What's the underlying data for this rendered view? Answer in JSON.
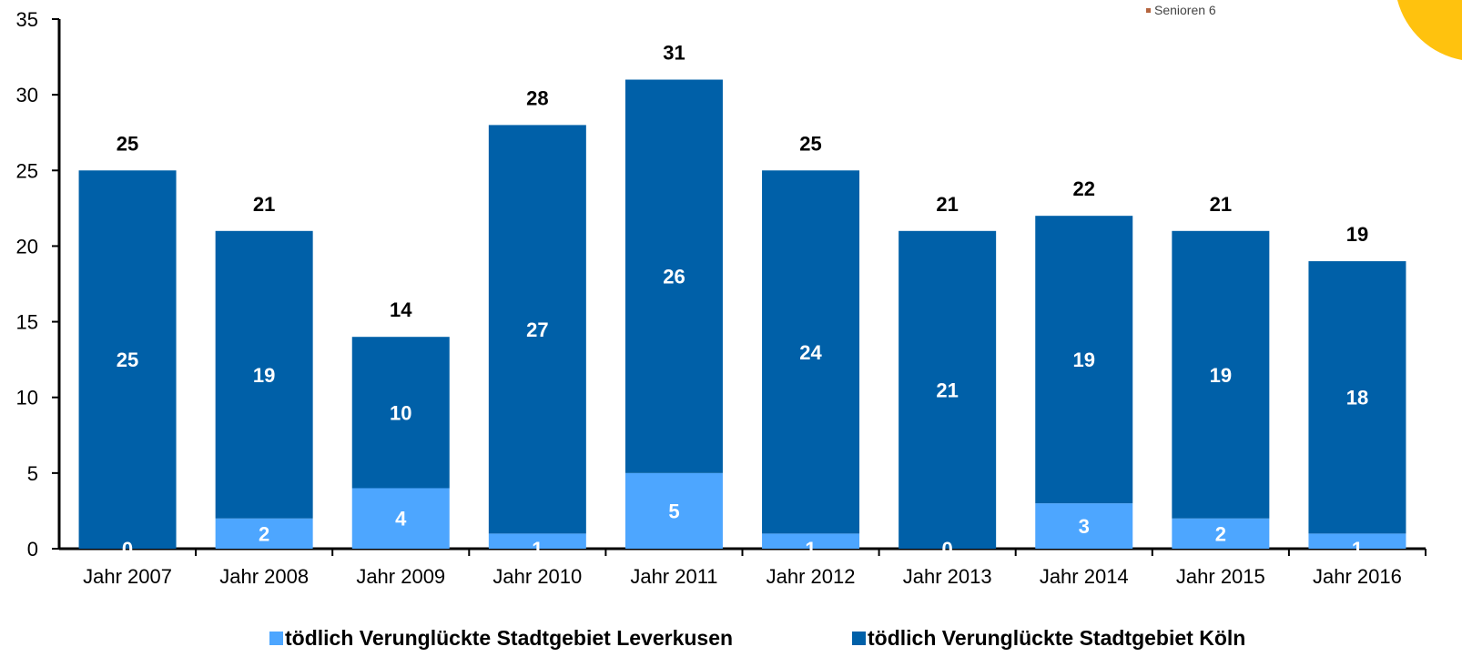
{
  "corner_note": "Senioren 6",
  "colors": {
    "leverkusen": "#4da6ff",
    "koeln": "#0060a8",
    "corner_accent": "#ffc20e",
    "note_bullet": "#b5653f"
  },
  "chart_data": {
    "type": "bar",
    "stacked": true,
    "categories": [
      "Jahr 2007",
      "Jahr 2008",
      "Jahr 2009",
      "Jahr 2010",
      "Jahr 2011",
      "Jahr 2012",
      "Jahr 2013",
      "Jahr 2014",
      "Jahr 2015",
      "Jahr 2016"
    ],
    "series": [
      {
        "name": "tödlich Verunglückte Stadtgebiet Leverkusen",
        "values": [
          0,
          2,
          4,
          1,
          5,
          1,
          0,
          3,
          2,
          1
        ]
      },
      {
        "name": "tödlich Verunglückte Stadtgebiet Köln",
        "values": [
          25,
          19,
          10,
          27,
          26,
          24,
          21,
          19,
          19,
          18
        ]
      }
    ],
    "totals": [
      25,
      21,
      14,
      28,
      31,
      25,
      21,
      22,
      21,
      19
    ],
    "ylim": [
      0,
      35
    ],
    "yticks": [
      0,
      5,
      10,
      15,
      20,
      25,
      30,
      35
    ],
    "grid": false,
    "legend_position": "bottom",
    "data_labels": true
  }
}
